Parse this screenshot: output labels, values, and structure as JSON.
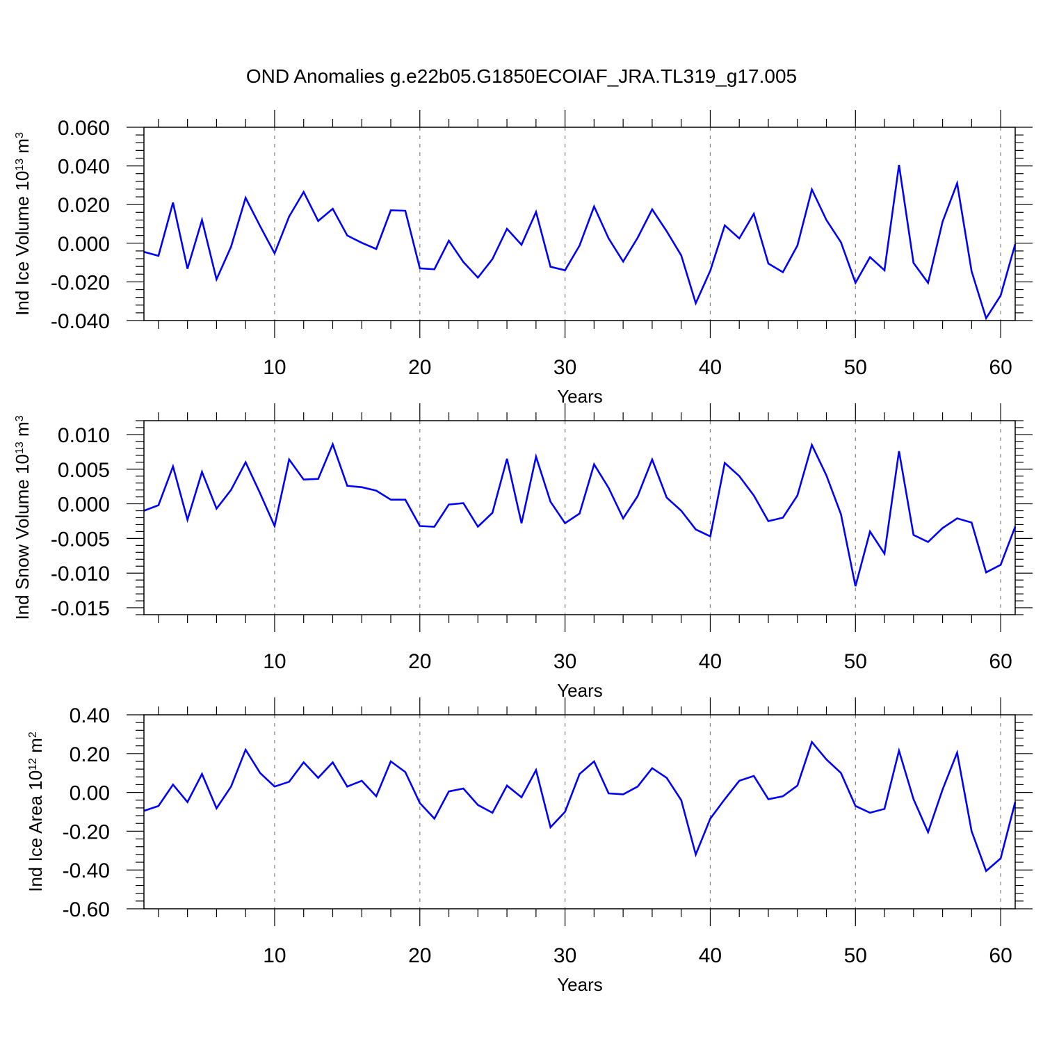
{
  "figure": {
    "title": "OND Anomalies g.e22b05.G1850ECOIAF_JRA.TL319_g17.005"
  },
  "colors": {
    "line": "#0000ff",
    "axis": "#000000",
    "gridline": "#808080",
    "background": "#ffffff"
  },
  "chart_data": [
    {
      "type": "line",
      "ylabel": "Ind Ice Volume 10",
      "ylabel_exp": "13",
      "ylabel_unit": " m",
      "ylabel_unit_exp": "3",
      "xlabel": "Years",
      "xlim": [
        1,
        61
      ],
      "ylim": [
        -0.04,
        0.06
      ],
      "x_ticks": [
        10,
        20,
        30,
        40,
        50,
        60
      ],
      "x_tick_labels": [
        "10",
        "20",
        "30",
        "40",
        "50",
        "60"
      ],
      "y_ticks": [
        -0.04,
        -0.02,
        0.0,
        0.02,
        0.04,
        0.06
      ],
      "y_tick_labels": [
        "-0.040",
        "-0.020",
        "0.000",
        "0.020",
        "0.040",
        "0.060"
      ],
      "vertical_gridlines_at": [
        10,
        20,
        30,
        40,
        50,
        60
      ],
      "series": [
        {
          "x_start": 1,
          "values": [
            -0.0045,
            -0.0065,
            0.021,
            -0.0132,
            0.012,
            -0.0187,
            -0.0018,
            0.0235,
            0.0088,
            -0.0052,
            0.0138,
            0.0265,
            0.0115,
            0.0178,
            0.004,
            0.0002,
            -0.003,
            0.017,
            0.0168,
            -0.013,
            -0.0135,
            0.0013,
            -0.0097,
            -0.0178,
            -0.0082,
            0.0075,
            -0.0008,
            0.0162,
            -0.0122,
            -0.014,
            -0.0012,
            0.019,
            0.0025,
            -0.0095,
            0.0028,
            0.0175,
            0.0062,
            -0.0063,
            -0.031,
            -0.0142,
            0.0092,
            0.0025,
            0.0152,
            -0.0105,
            -0.015,
            -0.0012,
            0.0278,
            0.012,
            0.0005,
            -0.0205,
            -0.0072,
            -0.014,
            0.0405,
            -0.0102,
            -0.0205,
            0.0112,
            0.031,
            -0.0145,
            -0.0388,
            -0.027,
            -0.0005
          ]
        }
      ]
    },
    {
      "type": "line",
      "ylabel": "Ind Snow Volume 10",
      "ylabel_exp": "13",
      "ylabel_unit": " m",
      "ylabel_unit_exp": "3",
      "xlabel": "Years",
      "xlim": [
        1,
        61
      ],
      "ylim": [
        -0.016,
        0.012
      ],
      "x_ticks": [
        10,
        20,
        30,
        40,
        50,
        60
      ],
      "x_tick_labels": [
        "10",
        "20",
        "30",
        "40",
        "50",
        "60"
      ],
      "y_ticks": [
        -0.015,
        -0.01,
        -0.005,
        0.0,
        0.005,
        0.01
      ],
      "y_tick_labels": [
        "-0.015",
        "-0.010",
        "-0.005",
        "0.000",
        "0.005",
        "0.010"
      ],
      "vertical_gridlines_at": [
        10,
        20,
        30,
        40,
        50,
        60
      ],
      "series": [
        {
          "x_start": 1,
          "values": [
            -0.001,
            -0.0002,
            0.0054,
            -0.0023,
            0.0046,
            -0.0007,
            0.002,
            0.006,
            0.0015,
            -0.0032,
            0.0064,
            0.0035,
            0.0036,
            0.0086,
            0.0026,
            0.0024,
            0.0019,
            0.0006,
            0.0006,
            -0.0032,
            -0.0033,
            -0.0001,
            0.0001,
            -0.0033,
            -0.0013,
            0.0065,
            -0.0028,
            0.0068,
            0.0003,
            -0.0028,
            -0.0014,
            0.0057,
            0.0023,
            -0.0021,
            0.0011,
            0.0064,
            0.0009,
            -0.001,
            -0.0037,
            -0.0047,
            0.0059,
            0.004,
            0.0012,
            -0.0025,
            -0.002,
            0.0012,
            0.0085,
            0.0041,
            -0.0015,
            -0.0119,
            -0.004,
            -0.0072,
            0.0076,
            -0.0045,
            -0.0055,
            -0.0035,
            -0.0021,
            -0.0027,
            -0.0099,
            -0.0088,
            -0.0033
          ]
        }
      ]
    },
    {
      "type": "line",
      "ylabel": "Ind Ice Area 10",
      "ylabel_exp": "12",
      "ylabel_unit": " m",
      "ylabel_unit_exp": "2",
      "xlabel": "Years",
      "xlim": [
        1,
        61
      ],
      "ylim": [
        -0.6,
        0.4
      ],
      "x_ticks": [
        10,
        20,
        30,
        40,
        50,
        60
      ],
      "x_tick_labels": [
        "10",
        "20",
        "30",
        "40",
        "50",
        "60"
      ],
      "y_ticks": [
        -0.6,
        -0.4,
        -0.2,
        0.0,
        0.2,
        0.4
      ],
      "y_tick_labels": [
        "-0.60",
        "-0.40",
        "-0.20",
        "0.00",
        "0.20",
        "0.40"
      ],
      "vertical_gridlines_at": [
        10,
        20,
        30,
        40,
        50,
        60
      ],
      "series": [
        {
          "x_start": 1,
          "values": [
            -0.095,
            -0.07,
            0.04,
            -0.05,
            0.095,
            -0.082,
            0.03,
            0.22,
            0.1,
            0.03,
            0.055,
            0.155,
            0.075,
            0.155,
            0.03,
            0.06,
            -0.02,
            0.16,
            0.105,
            -0.055,
            -0.135,
            0.005,
            0.02,
            -0.065,
            -0.105,
            0.035,
            -0.025,
            0.115,
            -0.18,
            -0.1,
            0.095,
            0.16,
            -0.005,
            -0.01,
            0.03,
            0.125,
            0.075,
            -0.04,
            -0.32,
            -0.135,
            -0.035,
            0.06,
            0.085,
            -0.035,
            -0.02,
            0.035,
            0.26,
            0.17,
            0.1,
            -0.07,
            -0.105,
            -0.085,
            0.215,
            -0.035,
            -0.205,
            0.015,
            0.205,
            -0.2,
            -0.405,
            -0.34,
            -0.05
          ]
        }
      ]
    }
  ]
}
